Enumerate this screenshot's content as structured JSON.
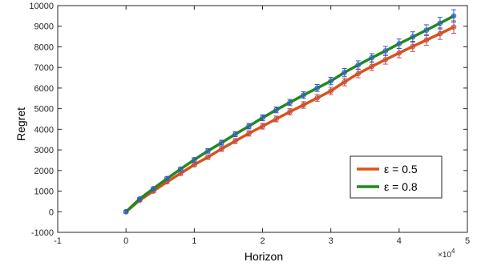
{
  "chart_data": {
    "type": "line",
    "xlabel": "Horizon",
    "ylabel": "Regret",
    "x_exponent_label": "×10",
    "x_exponent_power": "4",
    "xlim": [
      -1,
      5
    ],
    "ylim": [
      -1000,
      10000
    ],
    "xticks": [
      -1,
      0,
      1,
      2,
      3,
      4,
      5
    ],
    "yticks": [
      -1000,
      0,
      1000,
      2000,
      3000,
      4000,
      5000,
      6000,
      7000,
      8000,
      9000,
      10000
    ],
    "grid": false,
    "legend_position": "bottom-right",
    "x": [
      0,
      0.2,
      0.4,
      0.6,
      0.8,
      1.0,
      1.2,
      1.4,
      1.6,
      1.8,
      2.0,
      2.2,
      2.4,
      2.6,
      2.8,
      3.0,
      3.2,
      3.4,
      3.6,
      3.8,
      4.0,
      4.2,
      4.4,
      4.6,
      4.8
    ],
    "series": [
      {
        "name": "ε = 0.5",
        "color": "#d95319",
        "marker_color": "#c0504d",
        "values": [
          0,
          560,
          1000,
          1450,
          1860,
          2280,
          2650,
          3050,
          3430,
          3800,
          4150,
          4500,
          4850,
          5180,
          5520,
          5860,
          6300,
          6700,
          7050,
          7380,
          7700,
          8020,
          8330,
          8640,
          8960
        ],
        "errors": [
          60,
          60,
          70,
          80,
          90,
          100,
          110,
          120,
          120,
          130,
          140,
          140,
          150,
          160,
          170,
          180,
          190,
          200,
          200,
          220,
          230,
          250,
          260,
          280,
          300
        ]
      },
      {
        "name": "ε = 0.8",
        "color": "#1f8a1f",
        "marker_color": "#3355dd",
        "values": [
          0,
          620,
          1120,
          1610,
          2070,
          2520,
          2950,
          3350,
          3760,
          4150,
          4560,
          4940,
          5300,
          5660,
          6000,
          6340,
          6760,
          7120,
          7470,
          7800,
          8150,
          8480,
          8810,
          9150,
          9500
        ],
        "errors": [
          60,
          60,
          70,
          80,
          90,
          100,
          110,
          120,
          120,
          130,
          140,
          140,
          150,
          160,
          170,
          180,
          190,
          200,
          200,
          220,
          230,
          250,
          260,
          280,
          300
        ]
      }
    ]
  }
}
